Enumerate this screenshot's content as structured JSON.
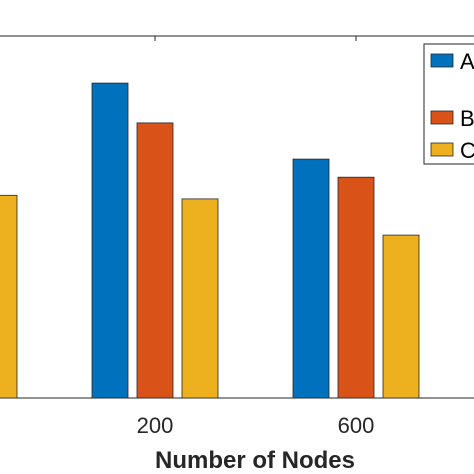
{
  "chart_data": {
    "type": "bar",
    "xlabel": "Number of Nodes",
    "ylabel": "",
    "categories": [
      "",
      "200",
      "600"
    ],
    "ylim": [
      0,
      100
    ],
    "series": [
      {
        "name": "A",
        "color": "#0072BD",
        "values": [
          null,
          87,
          66
        ]
      },
      {
        "name": "B",
        "color": "#D95319",
        "values": [
          null,
          76,
          61
        ]
      },
      {
        "name": "C",
        "color": "#EDB120",
        "values": [
          56,
          55,
          45
        ]
      }
    ],
    "legend_position": "top-right",
    "grid": false
  }
}
